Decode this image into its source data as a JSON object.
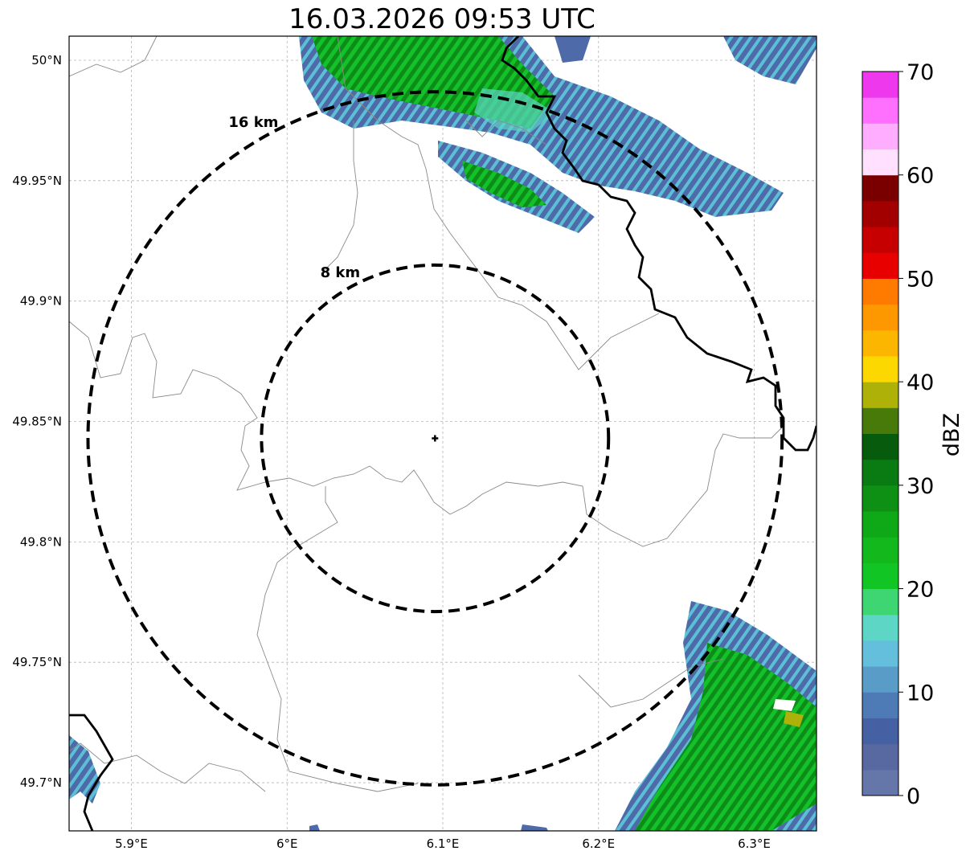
{
  "title": "16.03.2026 09:53 UTC",
  "map": {
    "lon_range": [
      5.86,
      6.34
    ],
    "lat_range": [
      49.68,
      50.01
    ],
    "lat_ticks": [
      {
        "value": 49.7,
        "label": "49.7°N"
      },
      {
        "value": 49.75,
        "label": "49.75°N"
      },
      {
        "value": 49.8,
        "label": "49.8°N"
      },
      {
        "value": 49.85,
        "label": "49.85°N"
      },
      {
        "value": 49.9,
        "label": "49.9°N"
      },
      {
        "value": 49.95,
        "label": "49.95°N"
      },
      {
        "value": 50.0,
        "label": "50°N"
      }
    ],
    "lon_ticks": [
      {
        "value": 5.9,
        "label": "5.9°E"
      },
      {
        "value": 6.0,
        "label": "6°E"
      },
      {
        "value": 6.1,
        "label": "6.1°E"
      },
      {
        "value": 6.2,
        "label": "6.2°E"
      },
      {
        "value": 6.3,
        "label": "6.3°E"
      }
    ],
    "gridlines": true,
    "radar_site": {
      "lon": 6.095,
      "lat": 49.843
    },
    "range_rings": [
      {
        "radius_km": 8,
        "label": "8 km"
      },
      {
        "radius_km": 16,
        "label": "16 km"
      }
    ]
  },
  "colorbar": {
    "label": "dBZ",
    "min": 0,
    "max": 70,
    "ticks": [
      {
        "value": 0,
        "label": "0"
      },
      {
        "value": 10,
        "label": "10"
      },
      {
        "value": 20,
        "label": "20"
      },
      {
        "value": 30,
        "label": "30"
      },
      {
        "value": 40,
        "label": "40"
      },
      {
        "value": 50,
        "label": "50"
      },
      {
        "value": 60,
        "label": "60"
      },
      {
        "value": 70,
        "label": "70"
      }
    ],
    "colors": [
      "#6577a8",
      "#5769a0",
      "#4560a3",
      "#4e7bb5",
      "#5a9cc8",
      "#63bfdc",
      "#5dd6c6",
      "#3ed672",
      "#11c624",
      "#12b81c",
      "#0fa816",
      "#0e9015",
      "#0a7a12",
      "#065c0c",
      "#487a0a",
      "#adb108",
      "#fdd800",
      "#fdb600",
      "#fd9800",
      "#ff7b00",
      "#e80000",
      "#c60000",
      "#a20000",
      "#7a0000",
      "#ffe0ff",
      "#ffadff",
      "#ff70ff",
      "#ee38ee"
    ]
  },
  "echo_colors": {
    "light": "#4e6aa8",
    "cyan": "#5bbfd6",
    "teal": "#5dd6c6",
    "green": "#13c12a",
    "darkgreen": "#0d8c17",
    "olive": "#adb108"
  }
}
